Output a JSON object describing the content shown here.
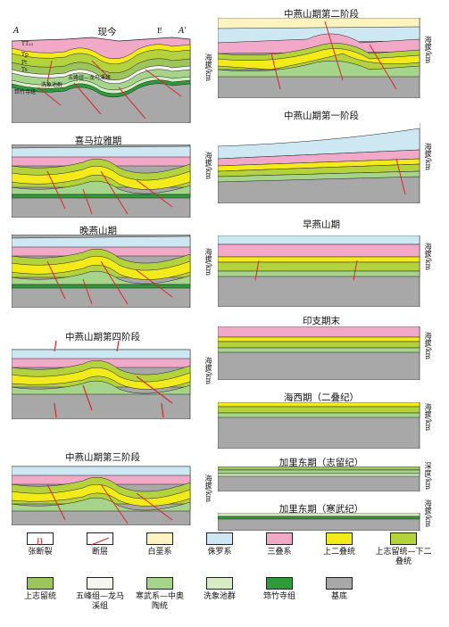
{
  "panels": {
    "present": {
      "title": "现今",
      "axis": "海拔/km",
      "corner_a": "A",
      "corner_a2": "A'",
      "dir": "E"
    },
    "himalaya": {
      "title": "喜马拉雅期",
      "axis": "海拔/km"
    },
    "late_yanshan": {
      "title": "晚燕山期",
      "axis": "海拔/km"
    },
    "mid_yanshan_4": {
      "title": "中燕山期第四阶段",
      "axis": "海拔/km"
    },
    "mid_yanshan_3": {
      "title": "中燕山期第三阶段",
      "axis": "海拔/km"
    },
    "mid_yanshan_2": {
      "title": "中燕山期第二阶段",
      "axis": "海拔/km"
    },
    "mid_yanshan_1": {
      "title": "中燕山期第一阶段",
      "axis": "海拔/km"
    },
    "early_yanshan": {
      "title": "早燕山期",
      "axis": "海拔/km"
    },
    "indosinian_end": {
      "title": "印支期末",
      "axis": "海拔/km"
    },
    "hercynian": {
      "title": "海西期（二叠纪）",
      "axis": "海拔/km"
    },
    "caledonian_s": {
      "title": "加里东期（志留纪）",
      "axis": "深度/km"
    },
    "caledonian_c": {
      "title": "加里东期（寒武纪）",
      "axis": "海拔/km"
    }
  },
  "present_labels": {
    "tt": "TT₂₃",
    "tp": "Tp",
    "pt": "Pt",
    "ts": "Ts",
    "wufeng": "五峰组—龙马溪组",
    "xixiangchi": "洗象池群",
    "qiongzhusi": "筇竹寺组"
  },
  "legend": [
    {
      "label": "张断裂",
      "color": "#ffffff",
      "icon": "tension-fracture-icon"
    },
    {
      "label": "断层",
      "color": "#ffffff",
      "icon": "fault-icon"
    },
    {
      "label": "白垩系",
      "color": "#fdf3c0"
    },
    {
      "label": "侏罗系",
      "color": "#cde7f3"
    },
    {
      "label": "三叠系",
      "color": "#f2a9c8"
    },
    {
      "label": "上二叠统",
      "color": "#f3ea1a"
    },
    {
      "label": "上志留统—下二叠统",
      "color": "#b4d23c"
    },
    {
      "label": "上志留统",
      "color": "#9cc55c"
    },
    {
      "label": "五峰组—龙马溪组",
      "color": "#f6f6f0"
    },
    {
      "label": "寒武系—中奥陶统",
      "color": "#a6d48a"
    },
    {
      "label": "洗象池群",
      "color": "#d6ecc4"
    },
    {
      "label": "筇竹寺组",
      "color": "#2e9a3a"
    },
    {
      "label": "基底",
      "color": "#a8a8a8"
    }
  ]
}
